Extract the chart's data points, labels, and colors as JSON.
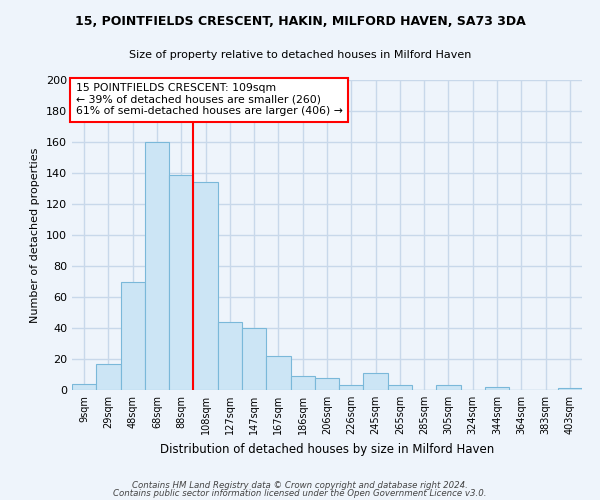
{
  "title": "15, POINTFIELDS CRESCENT, HAKIN, MILFORD HAVEN, SA73 3DA",
  "subtitle": "Size of property relative to detached houses in Milford Haven",
  "xlabel": "Distribution of detached houses by size in Milford Haven",
  "ylabel": "Number of detached properties",
  "bar_labels": [
    "9sqm",
    "29sqm",
    "48sqm",
    "68sqm",
    "88sqm",
    "108sqm",
    "127sqm",
    "147sqm",
    "167sqm",
    "186sqm",
    "206sqm",
    "226sqm",
    "245sqm",
    "265sqm",
    "285sqm",
    "305sqm",
    "324sqm",
    "344sqm",
    "364sqm",
    "383sqm",
    "403sqm"
  ],
  "bar_values": [
    4,
    17,
    70,
    160,
    139,
    134,
    44,
    40,
    22,
    9,
    8,
    3,
    11,
    3,
    0,
    3,
    0,
    2,
    0,
    0,
    1
  ],
  "bar_color": "#cce5f5",
  "bar_edge_color": "#7ab8d9",
  "vline_x_index": 4.5,
  "vline_color": "red",
  "annotation_text": "15 POINTFIELDS CRESCENT: 109sqm\n← 39% of detached houses are smaller (260)\n61% of semi-detached houses are larger (406) →",
  "annotation_box_color": "white",
  "annotation_box_edge": "red",
  "ylim": [
    0,
    200
  ],
  "yticks": [
    0,
    20,
    40,
    60,
    80,
    100,
    120,
    140,
    160,
    180,
    200
  ],
  "footnote1": "Contains HM Land Registry data © Crown copyright and database right 2024.",
  "footnote2": "Contains public sector information licensed under the Open Government Licence v3.0.",
  "bg_color": "#eef4fb",
  "grid_color": "#c8d8ea"
}
